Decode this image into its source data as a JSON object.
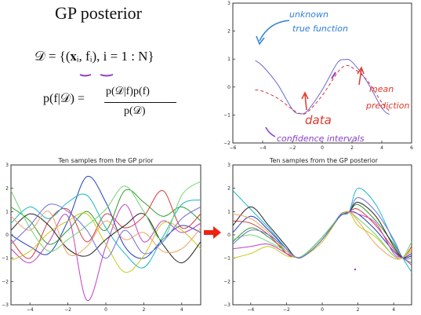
{
  "slide": {
    "title": "GP posterior",
    "eq_data": "𝒟 = {(𝐱ᵢ, fᵢ), i = 1 : N}",
    "eq_bayes_lhs": "p(f|𝒟) =",
    "eq_bayes_num": "p(𝒟|f)p(f)",
    "eq_bayes_den": "p(𝒟)"
  },
  "annotations": {
    "unknown": "unknown",
    "true_function": "true function",
    "mean": "mean",
    "prediction": "prediction",
    "data": "data",
    "confidence_intervals": "confidence intervals"
  },
  "colors": {
    "annotation_blue": "#2f7fd8",
    "annotation_red": "#e0392a",
    "annotation_purple": "#8a3fc8",
    "arrow_red": "#ee2211"
  },
  "chart_data": [
    {
      "type": "line",
      "title": "",
      "xlim": [
        -6,
        6
      ],
      "ylim": [
        -2,
        3
      ],
      "xticks": [
        -6,
        -4,
        -2,
        0,
        2,
        4,
        6
      ],
      "yticks": [
        -2,
        -1,
        0,
        1,
        2,
        3
      ],
      "series": [
        {
          "style": "solid",
          "color": "#6a6ad8",
          "x": [
            -4.5,
            -4,
            -3,
            -2,
            -1.5,
            -1,
            0,
            1,
            1.5,
            2,
            3,
            4,
            4.5
          ],
          "y": [
            0.95,
            0.75,
            0.1,
            -0.8,
            -0.95,
            -0.85,
            -0.1,
            0.85,
            0.98,
            0.9,
            0.2,
            -0.75,
            -0.98
          ]
        },
        {
          "style": "dashed",
          "color": "#dd3333",
          "x": [
            -4.5,
            -4,
            -3,
            -2,
            -1.5,
            -1,
            0,
            1,
            1.5,
            2,
            3,
            4,
            4.5
          ],
          "y": [
            -0.1,
            -0.15,
            -0.4,
            -0.8,
            -0.95,
            -0.9,
            -0.3,
            0.5,
            0.75,
            0.7,
            0.25,
            -0.55,
            -0.85
          ]
        }
      ]
    },
    {
      "type": "line",
      "title": "Ten samples from the GP prior",
      "xlim": [
        -5,
        5
      ],
      "ylim": [
        -3,
        3
      ],
      "xticks": [
        -4,
        -2,
        0,
        2,
        4
      ],
      "yticks": [
        -3,
        -2,
        -1,
        0,
        1,
        2,
        3
      ],
      "x": [
        -5,
        -4,
        -3,
        -2,
        -1,
        0,
        1,
        2,
        3,
        4,
        5
      ],
      "series": [
        {
          "color": "#1f3fbf",
          "values": [
            0.0,
            -0.5,
            -0.8,
            0.6,
            2.5,
            1.4,
            -0.5,
            -1.0,
            -0.2,
            0.4,
            0.1
          ]
        },
        {
          "color": "#2a9d2a",
          "values": [
            1.2,
            0.6,
            -0.4,
            0.2,
            1.0,
            0.2,
            1.9,
            1.4,
            0.8,
            1.2,
            0.6
          ]
        },
        {
          "color": "#d13b3b",
          "values": [
            -0.2,
            -1.0,
            0.6,
            1.1,
            -0.3,
            0.9,
            0.3,
            0.8,
            1.9,
            0.3,
            0.9
          ]
        },
        {
          "color": "#17b7c7",
          "values": [
            0.5,
            1.2,
            0.7,
            1.4,
            1.7,
            0.3,
            -0.8,
            -1.4,
            -0.1,
            1.3,
            1.5
          ]
        },
        {
          "color": "#c23fc2",
          "values": [
            -0.6,
            -1.2,
            -0.3,
            0.8,
            -2.8,
            -0.5,
            1.3,
            -0.3,
            0.6,
            0.1,
            0.5
          ]
        },
        {
          "color": "#c8c81a",
          "values": [
            -1.1,
            -0.7,
            0.1,
            0.6,
            0.9,
            -0.4,
            -1.6,
            -0.9,
            0.5,
            0.2,
            -0.6
          ]
        },
        {
          "color": "#222222",
          "values": [
            0.2,
            0.9,
            0.4,
            -0.6,
            -0.9,
            -0.2,
            0.4,
            0.9,
            -0.4,
            -1.2,
            -0.3
          ]
        },
        {
          "color": "#6fd66f",
          "values": [
            1.9,
            0.3,
            -0.7,
            -0.2,
            0.4,
            1.1,
            2.1,
            1.0,
            -0.2,
            1.7,
            2.3
          ]
        },
        {
          "color": "#f0a060",
          "values": [
            0.8,
            0.2,
            1.0,
            -0.8,
            -0.5,
            0.6,
            -0.2,
            0.1,
            -0.7,
            -0.6,
            0.3
          ]
        },
        {
          "color": "#7070e0",
          "values": [
            -0.4,
            0.4,
            1.3,
            1.0,
            0.2,
            -1.0,
            0.2,
            -0.8,
            -0.3,
            0.7,
            1.2
          ]
        }
      ]
    },
    {
      "type": "line",
      "title": "Ten samples from the GP posterior",
      "xlim": [
        -5,
        5
      ],
      "ylim": [
        -3,
        3
      ],
      "xticks": [
        -4,
        -2,
        0,
        2,
        4
      ],
      "yticks": [
        -3,
        -2,
        -1,
        0,
        1,
        2,
        3
      ],
      "x": [
        -5,
        -4,
        -3,
        -2,
        -1.5,
        -1,
        0,
        1,
        1.5,
        2,
        3,
        4,
        4.5,
        5
      ],
      "series": [
        {
          "color": "#1f3fbf",
          "values": [
            0.1,
            0.8,
            0.2,
            -0.6,
            -0.95,
            -0.9,
            -0.2,
            0.85,
            0.98,
            0.9,
            0.2,
            -0.7,
            -0.98,
            -0.8
          ]
        },
        {
          "color": "#2a9d2a",
          "values": [
            -0.3,
            0.3,
            -0.1,
            -0.7,
            -0.95,
            -0.85,
            -0.1,
            0.8,
            0.98,
            1.3,
            0.6,
            -0.4,
            -0.98,
            -1.2
          ]
        },
        {
          "color": "#d13b3b",
          "values": [
            0.6,
            0.5,
            0.0,
            -0.8,
            -0.95,
            -0.9,
            -0.2,
            0.8,
            0.98,
            1.1,
            0.4,
            -0.6,
            -0.98,
            -0.5
          ]
        },
        {
          "color": "#17b7c7",
          "values": [
            1.9,
            1.1,
            0.3,
            -0.6,
            -0.95,
            -0.85,
            -0.1,
            0.8,
            0.98,
            2.0,
            1.3,
            -0.3,
            -0.98,
            -1.6
          ]
        },
        {
          "color": "#c23fc2",
          "values": [
            -0.6,
            -0.5,
            -0.4,
            -0.8,
            -0.95,
            -0.9,
            -0.2,
            0.8,
            0.98,
            0.9,
            0.5,
            -0.8,
            -0.98,
            -1.3
          ]
        },
        {
          "color": "#c8c81a",
          "values": [
            -1.0,
            -0.8,
            -0.5,
            -0.9,
            -0.95,
            -0.9,
            -0.3,
            0.8,
            0.98,
            0.4,
            -0.1,
            -0.9,
            -0.98,
            -0.6
          ]
        },
        {
          "color": "#222222",
          "values": [
            0.4,
            1.2,
            0.4,
            -0.5,
            -0.95,
            -0.9,
            -0.2,
            0.8,
            0.98,
            1.4,
            0.8,
            -0.5,
            -0.98,
            -0.9
          ]
        },
        {
          "color": "#6fd66f",
          "values": [
            -0.2,
            0.0,
            -0.3,
            -0.7,
            -0.95,
            -0.85,
            -0.1,
            0.8,
            0.98,
            0.7,
            0.0,
            -0.9,
            -0.98,
            -0.3
          ]
        },
        {
          "color": "#f0a060",
          "values": [
            0.9,
            0.7,
            0.1,
            -0.7,
            -0.95,
            -0.9,
            -0.2,
            0.8,
            0.98,
            0.6,
            -0.4,
            -1.0,
            -0.98,
            -0.7
          ]
        },
        {
          "color": "#7070e0",
          "values": [
            -0.4,
            0.2,
            0.0,
            -0.6,
            -0.95,
            -0.9,
            -0.2,
            0.8,
            0.98,
            1.6,
            1.0,
            -0.2,
            -0.98,
            -1.0
          ]
        }
      ]
    }
  ]
}
